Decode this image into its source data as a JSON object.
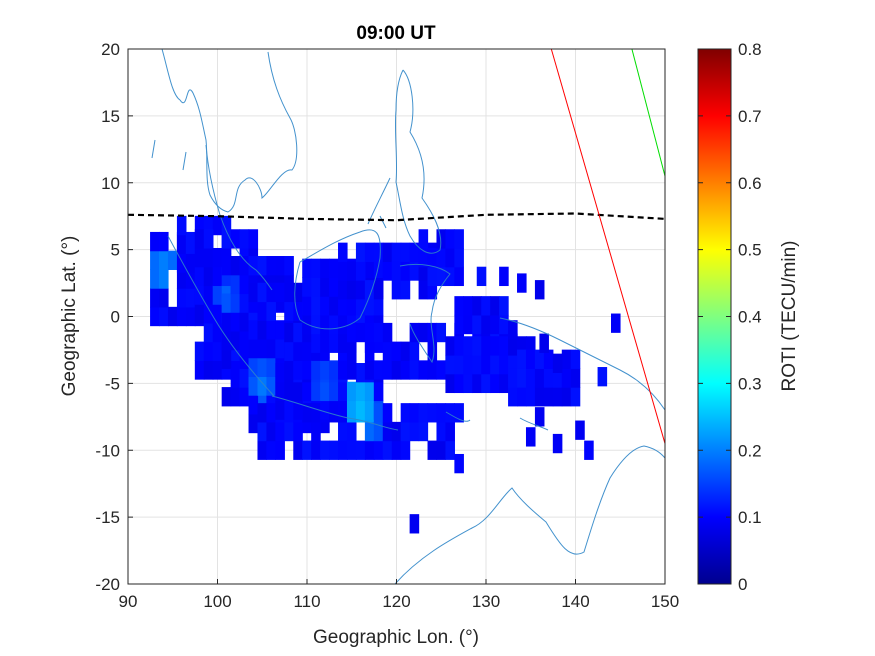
{
  "chart_data": {
    "type": "heatmap",
    "title": "09:00 UT",
    "xlabel": "Geographic Lon. (°)",
    "ylabel": "Geographic Lat. (°)",
    "xlim": [
      90,
      150
    ],
    "ylim": [
      -20,
      20
    ],
    "xticks": [
      "90",
      "100",
      "110",
      "120",
      "130",
      "140",
      "150"
    ],
    "yticks": [
      "20",
      "15",
      "10",
      "5",
      "0",
      "-5",
      "-10",
      "-15",
      "-20"
    ],
    "grid": true,
    "colorbar": {
      "label": "ROTI (TECU/min)",
      "range": [
        0,
        0.8
      ],
      "ticks": [
        "0.8",
        "0.7",
        "0.6",
        "0.5",
        "0.4",
        "0.3",
        "0.2",
        "0.1",
        "0"
      ],
      "colormap": "jet"
    },
    "magnetic_equator": {
      "style": "dashed-black",
      "points": [
        [
          90,
          7.6
        ],
        [
          100,
          7.5
        ],
        [
          110,
          7.3
        ],
        [
          120,
          7.2
        ],
        [
          130,
          7.6
        ],
        [
          140,
          7.7
        ],
        [
          150,
          7.3
        ]
      ]
    },
    "lines": [
      {
        "color": "#ff0000",
        "points": [
          [
            137.3,
            20
          ],
          [
            150,
            -9.5
          ]
        ]
      },
      {
        "color": "#00dd00",
        "points": [
          [
            146.3,
            20
          ],
          [
            150,
            10.5
          ]
        ]
      }
    ],
    "roti_cells": {
      "cell_size_deg": [
        1.0,
        1.4
      ],
      "base_value": 0.1,
      "blocks": [
        {
          "lon": [
            93,
            99
          ],
          "lat": [
            0,
            6
          ]
        },
        {
          "lon": [
            96,
            101
          ],
          "lat": [
            4,
            8
          ]
        },
        {
          "lon": [
            98,
            104
          ],
          "lat": [
            -4,
            6
          ]
        },
        {
          "lon": [
            101,
            108
          ],
          "lat": [
            -6,
            4
          ]
        },
        {
          "lon": [
            104,
            112
          ],
          "lat": [
            -8,
            2
          ]
        },
        {
          "lon": [
            105,
            117
          ],
          "lat": [
            -10,
            -6
          ]
        },
        {
          "lon": [
            107,
            118
          ],
          "lat": [
            -7,
            -4
          ]
        },
        {
          "lon": [
            108,
            114
          ],
          "lat": [
            -4,
            0
          ]
        },
        {
          "lon": [
            110,
            118
          ],
          "lat": [
            -2,
            4
          ]
        },
        {
          "lon": [
            114,
            119
          ],
          "lat": [
            2,
            6
          ]
        },
        {
          "lon": [
            115,
            127
          ],
          "lat": [
            -4,
            0
          ]
        },
        {
          "lon": [
            118,
            127
          ],
          "lat": [
            -10,
            -7
          ]
        },
        {
          "lon": [
            127,
            133
          ],
          "lat": [
            -2,
            1
          ]
        },
        {
          "lon": [
            126,
            136
          ],
          "lat": [
            -5,
            -2
          ]
        },
        {
          "lon": [
            133,
            140
          ],
          "lat": [
            -6,
            -3
          ]
        },
        {
          "lon": [
            119,
            124
          ],
          "lat": [
            2,
            5
          ]
        },
        {
          "lon": [
            123,
            127
          ],
          "lat": [
            3,
            6
          ]
        }
      ],
      "scattered": [
        [
          126,
          -10
        ],
        [
          127,
          -11
        ],
        [
          122,
          -15.5
        ],
        [
          138,
          -9.5
        ],
        [
          141.5,
          -10
        ],
        [
          144.5,
          -0.5
        ],
        [
          143,
          -4.5
        ],
        [
          140,
          -6
        ],
        [
          140.5,
          -8.5
        ],
        [
          135,
          -9
        ],
        [
          136,
          -7.5
        ],
        [
          129.5,
          3
        ],
        [
          132,
          3
        ],
        [
          134,
          2.5
        ],
        [
          136,
          2
        ],
        [
          133,
          -1
        ],
        [
          136.5,
          -2
        ],
        [
          138,
          -3.5
        ]
      ],
      "hotspots": [
        {
          "lon": 94,
          "lat": 3.5,
          "value": 0.22
        },
        {
          "lon": 101,
          "lat": 1.5,
          "value": 0.18
        },
        {
          "lon": 105,
          "lat": -5,
          "value": 0.2
        },
        {
          "lon": 112,
          "lat": -5,
          "value": 0.18
        },
        {
          "lon": 116,
          "lat": -6.5,
          "value": 0.26
        },
        {
          "lon": 117,
          "lat": -8,
          "value": 0.2
        }
      ]
    }
  }
}
